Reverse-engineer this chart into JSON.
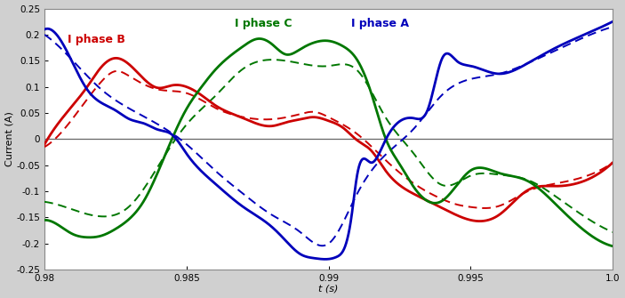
{
  "title": "",
  "xlabel": "t (s)",
  "ylabel": "Current (A)",
  "xlim": [
    0.98,
    1.0
  ],
  "ylim": [
    -0.25,
    0.25
  ],
  "xticks": [
    0.98,
    0.985,
    0.99,
    0.995,
    1.0
  ],
  "yticks": [
    -0.25,
    -0.2,
    -0.15,
    -0.1,
    -0.05,
    0,
    0.05,
    0.1,
    0.15,
    0.2,
    0.25
  ],
  "color_B": "#cc0000",
  "color_C": "#007700",
  "color_A": "#0000bb",
  "label_B": "I phase B",
  "label_C": "I phase C",
  "label_A": "I phase A",
  "lw_solid": 2.0,
  "lw_dash": 1.4,
  "bg_color": "#ffffff",
  "fig_bg": "#d0d0d0"
}
